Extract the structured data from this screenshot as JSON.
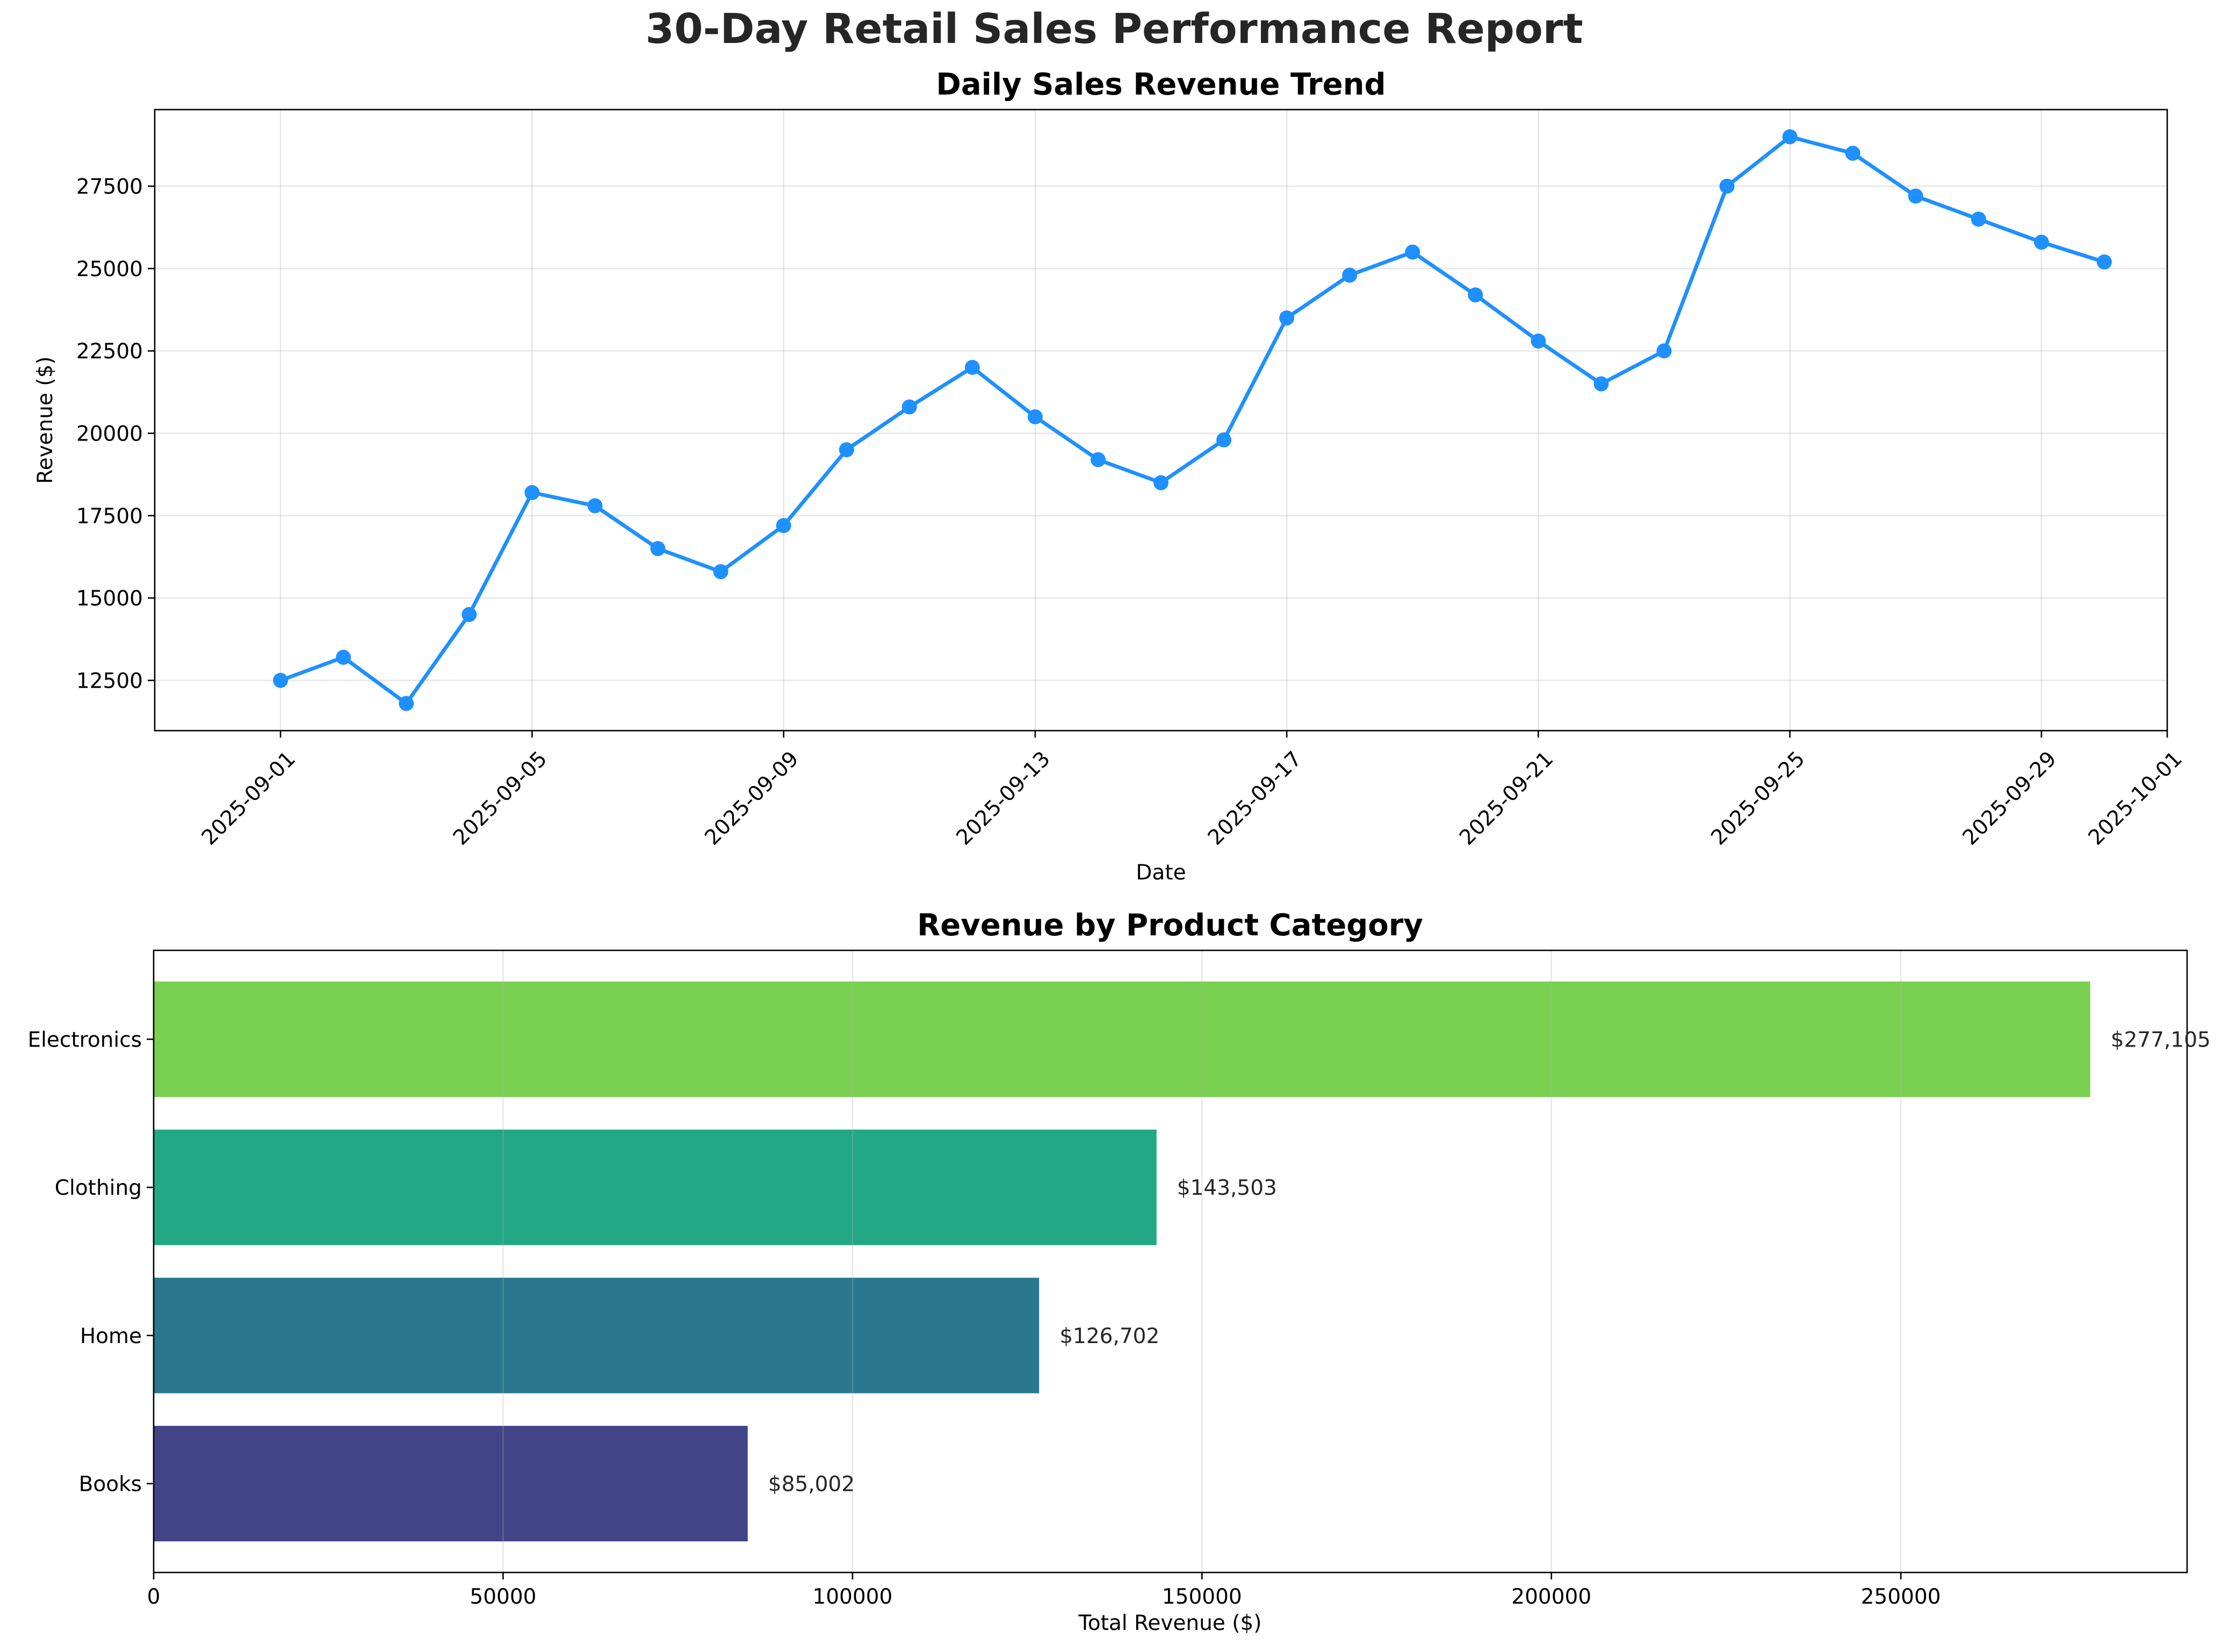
{
  "title": "30-Day Retail Sales Performance Report",
  "chart_data": [
    {
      "type": "line",
      "title": "Daily Sales Revenue Trend",
      "xlabel": "Date",
      "ylabel": "Revenue ($)",
      "x": [
        "2025-09-01",
        "2025-09-02",
        "2025-09-03",
        "2025-09-04",
        "2025-09-05",
        "2025-09-06",
        "2025-09-07",
        "2025-09-08",
        "2025-09-09",
        "2025-09-10",
        "2025-09-11",
        "2025-09-12",
        "2025-09-13",
        "2025-09-14",
        "2025-09-15",
        "2025-09-16",
        "2025-09-17",
        "2025-09-18",
        "2025-09-19",
        "2025-09-20",
        "2025-09-21",
        "2025-09-22",
        "2025-09-23",
        "2025-09-24",
        "2025-09-25",
        "2025-09-26",
        "2025-09-27",
        "2025-09-28",
        "2025-09-29",
        "2025-09-30"
      ],
      "values": [
        12500,
        13200,
        11800,
        14500,
        18200,
        17800,
        16500,
        15800,
        17200,
        19500,
        20800,
        22000,
        20500,
        19200,
        18500,
        19800,
        23500,
        24800,
        25500,
        24200,
        22800,
        21500,
        22500,
        27500,
        29000,
        28500,
        27200,
        26500,
        25800,
        25200
      ],
      "xticks": [
        "2025-09-01",
        "2025-09-05",
        "2025-09-09",
        "2025-09-13",
        "2025-09-17",
        "2025-09-21",
        "2025-09-25",
        "2025-09-29",
        "2025-10-01"
      ],
      "xlim": [
        "2025-08-30",
        "2025-10-01"
      ],
      "yticks": [
        12500,
        15000,
        17500,
        20000,
        22500,
        25000,
        27500
      ],
      "ylim": [
        10975,
        29825
      ],
      "color": "#1e90ff",
      "marker": "circle",
      "grid": true
    },
    {
      "type": "bar",
      "orientation": "horizontal",
      "title": "Revenue by Product Category",
      "xlabel": "Total Revenue ($)",
      "ylabel": "",
      "categories": [
        "Electronics",
        "Clothing",
        "Home",
        "Books"
      ],
      "values": [
        277105,
        143503,
        126702,
        85002
      ],
      "labels": [
        "$277,105",
        "$143,503",
        "$126,702",
        "$85,002"
      ],
      "colors": [
        "#7ad151",
        "#22a884",
        "#2a788e",
        "#414487"
      ],
      "xticks": [
        0,
        50000,
        100000,
        150000,
        200000,
        250000
      ],
      "xlim": [
        0,
        290960
      ],
      "grid": true
    }
  ]
}
